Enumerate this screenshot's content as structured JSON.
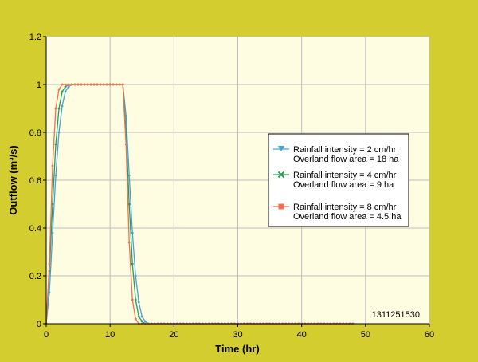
{
  "chart_data": {
    "type": "line",
    "xlabel": "Time (hr)",
    "ylabel": "Outflow (m³/s)",
    "xlim": [
      0,
      60
    ],
    "ylim": [
      0,
      1.2
    ],
    "x_ticks": [
      "0",
      "10",
      "20",
      "30",
      "40",
      "50",
      "60"
    ],
    "y_ticks": [
      "0",
      "0.2",
      "0.4",
      "0.6",
      "0.8",
      "1",
      "1.2"
    ],
    "grid": true,
    "legend_position": "right",
    "annotation": "1311251530",
    "colors": {
      "background": "#d4cd2f",
      "plot_area": "#fefde2",
      "grid": "#bdbdbd"
    },
    "series": [
      {
        "name": "Rainfall intensity = 2 cm/hr",
        "name_line2": "Overland flow area = 18 ha",
        "color": "#3fa6d8",
        "marker": "triangle-down",
        "x": [
          0,
          0.5,
          1,
          1.5,
          2,
          2.5,
          3,
          3.5,
          4,
          4.5,
          5,
          5.5,
          6,
          6.5,
          7,
          7.5,
          8,
          8.5,
          9,
          9.5,
          10,
          10.5,
          11,
          11.5,
          12,
          12.5,
          13,
          13.5,
          14,
          14.5,
          15,
          15.5,
          16,
          16.5,
          17,
          17.5,
          18,
          18.5,
          19,
          19.5,
          20,
          20.5,
          21,
          21.5,
          22,
          22.5,
          23,
          23.5,
          24,
          24.5,
          25,
          25.5,
          26,
          26.5,
          27,
          27.5,
          28,
          28.5,
          29,
          29.5,
          30,
          30.5,
          31,
          31.5,
          32,
          32.5,
          33,
          33.5,
          34,
          34.5,
          35,
          35.5,
          36,
          36.5,
          37,
          37.5,
          38,
          38.5,
          39,
          39.5,
          40,
          40.5,
          41,
          41.5,
          42,
          42.5,
          43,
          43.5,
          44,
          44.5,
          45,
          45.5,
          46,
          46.5,
          47,
          47.5,
          48
        ],
        "y": [
          0,
          0.13,
          0.38,
          0.62,
          0.8,
          0.91,
          0.97,
          0.99,
          1,
          1,
          1,
          1,
          1,
          1,
          1,
          1,
          1,
          1,
          1,
          1,
          1,
          1,
          1,
          1,
          1,
          0.87,
          0.62,
          0.38,
          0.2,
          0.09,
          0.03,
          0.01,
          0,
          0,
          0,
          0,
          0,
          0,
          0,
          0,
          0,
          0,
          0,
          0,
          0,
          0,
          0,
          0,
          0,
          0,
          0,
          0,
          0,
          0,
          0,
          0,
          0,
          0,
          0,
          0,
          0,
          0,
          0,
          0,
          0,
          0,
          0,
          0,
          0,
          0,
          0,
          0,
          0,
          0,
          0,
          0,
          0,
          0,
          0,
          0,
          0,
          0,
          0,
          0,
          0,
          0,
          0,
          0,
          0,
          0,
          0,
          0,
          0,
          0,
          0,
          0,
          0
        ]
      },
      {
        "name": "Rainfall intensity = 4 cm/hr",
        "name_line2": "Overland flow area = 9 ha",
        "color": "#2e9a57",
        "marker": "x",
        "x": [
          0,
          0.5,
          1,
          1.5,
          2,
          2.5,
          3,
          3.5,
          4,
          4.5,
          5,
          5.5,
          6,
          6.5,
          7,
          7.5,
          8,
          8.5,
          9,
          9.5,
          10,
          10.5,
          11,
          11.5,
          12,
          12.5,
          13,
          13.5,
          14,
          14.5,
          15,
          15.5,
          16,
          16.5,
          17,
          17.5,
          18,
          18.5,
          19,
          19.5,
          20,
          20.5,
          21,
          21.5,
          22,
          22.5,
          23,
          23.5,
          24,
          24.5,
          25,
          25.5,
          26,
          26.5,
          27,
          27.5,
          28,
          28.5,
          29,
          29.5,
          30,
          30.5,
          31,
          31.5,
          32,
          32.5,
          33,
          33.5,
          34,
          34.5,
          35,
          35.5,
          36,
          36.5,
          37,
          37.5,
          38,
          38.5,
          39,
          39.5,
          40,
          40.5,
          41,
          41.5,
          42,
          42.5,
          43,
          43.5,
          44,
          44.5,
          45,
          45.5,
          46,
          46.5,
          47,
          47.5,
          48
        ],
        "y": [
          0,
          0.22,
          0.5,
          0.75,
          0.9,
          0.97,
          0.99,
          1,
          1,
          1,
          1,
          1,
          1,
          1,
          1,
          1,
          1,
          1,
          1,
          1,
          1,
          1,
          1,
          1,
          1,
          0.8,
          0.5,
          0.25,
          0.1,
          0.03,
          0.01,
          0,
          0,
          0,
          0,
          0,
          0,
          0,
          0,
          0,
          0,
          0,
          0,
          0,
          0,
          0,
          0,
          0,
          0,
          0,
          0,
          0,
          0,
          0,
          0,
          0,
          0,
          0,
          0,
          0,
          0,
          0,
          0,
          0,
          0,
          0,
          0,
          0,
          0,
          0,
          0,
          0,
          0,
          0,
          0,
          0,
          0,
          0,
          0,
          0,
          0,
          0,
          0,
          0,
          0,
          0,
          0,
          0,
          0,
          0,
          0,
          0,
          0,
          0,
          0,
          0,
          0
        ]
      },
      {
        "name": "Rainfall intensity = 8 cm/hr",
        "name_line2": "Overland flow area = 4.5 ha",
        "color": "#f07050",
        "marker": "square",
        "x": [
          0,
          0.5,
          1,
          1.5,
          2,
          2.5,
          3,
          3.5,
          4,
          4.5,
          5,
          5.5,
          6,
          6.5,
          7,
          7.5,
          8,
          8.5,
          9,
          9.5,
          10,
          10.5,
          11,
          11.5,
          12,
          12.5,
          13,
          13.5,
          14,
          14.5,
          15,
          15.5,
          16,
          16.5,
          17,
          17.5,
          18,
          18.5,
          19,
          19.5,
          20,
          20.5,
          21,
          21.5,
          22,
          22.5,
          23,
          23.5,
          24,
          24.5,
          25,
          25.5,
          26,
          26.5,
          27,
          27.5,
          28,
          28.5,
          29,
          29.5,
          30,
          30.5,
          31,
          31.5,
          32,
          32.5,
          33,
          33.5,
          34,
          34.5,
          35,
          35.5,
          36,
          36.5,
          37,
          37.5,
          38,
          38.5,
          39,
          39.5,
          40,
          40.5,
          41,
          41.5,
          42,
          42.5,
          43,
          43.5,
          44,
          44.5,
          45,
          45.5,
          46,
          46.5,
          47,
          47.5,
          48
        ],
        "y": [
          0,
          0.25,
          0.66,
          0.9,
          0.98,
          1,
          1,
          1,
          1,
          1,
          1,
          1,
          1,
          1,
          1,
          1,
          1,
          1,
          1,
          1,
          1,
          1,
          1,
          1,
          1,
          0.75,
          0.34,
          0.1,
          0.02,
          0,
          0,
          0,
          0,
          0,
          0,
          0,
          0,
          0,
          0,
          0,
          0,
          0,
          0,
          0,
          0,
          0,
          0,
          0,
          0,
          0,
          0,
          0,
          0,
          0,
          0,
          0,
          0,
          0,
          0,
          0,
          0,
          0,
          0,
          0,
          0,
          0,
          0,
          0,
          0,
          0,
          0,
          0,
          0,
          0,
          0,
          0,
          0,
          0,
          0,
          0,
          0,
          0,
          0,
          0,
          0,
          0,
          0,
          0,
          0,
          0,
          0,
          0,
          0,
          0,
          0,
          0,
          0
        ]
      }
    ]
  }
}
